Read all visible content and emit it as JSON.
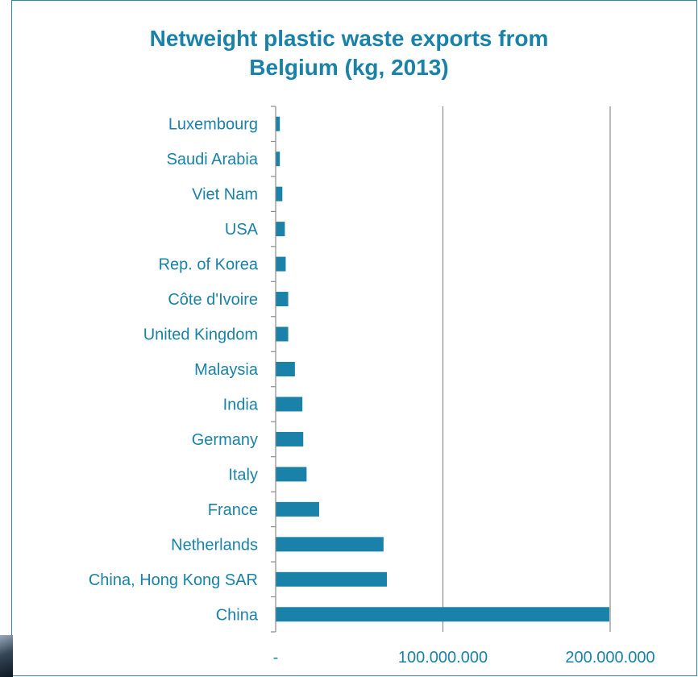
{
  "chart_data": {
    "type": "bar",
    "orientation": "horizontal",
    "title": "Netweight plastic waste exports from Belgium (kg, 2013)",
    "title_lines": [
      "Netweight plastic waste exports from",
      "Belgium (kg, 2013)"
    ],
    "categories": [
      "Luxembourg",
      "Saudi Arabia",
      "Viet Nam",
      "USA",
      "Rep. of Korea",
      "Côte d'Ivoire",
      "United Kingdom",
      "Malaysia",
      "India",
      "Germany",
      "Italy",
      "France",
      "Netherlands",
      "China, Hong Kong SAR",
      "China"
    ],
    "values": [
      2500000,
      2500000,
      4000000,
      5500000,
      6000000,
      7500000,
      7500000,
      11500000,
      16000000,
      16500000,
      18500000,
      26000000,
      64500000,
      66500000,
      199500000
    ],
    "xlim": [
      0,
      200000000
    ],
    "x_ticks": [
      0,
      100000000,
      200000000
    ],
    "x_tick_labels": [
      "-",
      "100.000.000",
      "200.000.000"
    ],
    "xlabel": "",
    "ylabel": "",
    "grid": "vertical",
    "legend": "none",
    "colors": {
      "bar": "#1a82a8",
      "title": "#1a82a8",
      "labels": "#1a82a8",
      "grid": "#8c8c8c",
      "frame": "#2e86ab"
    }
  }
}
